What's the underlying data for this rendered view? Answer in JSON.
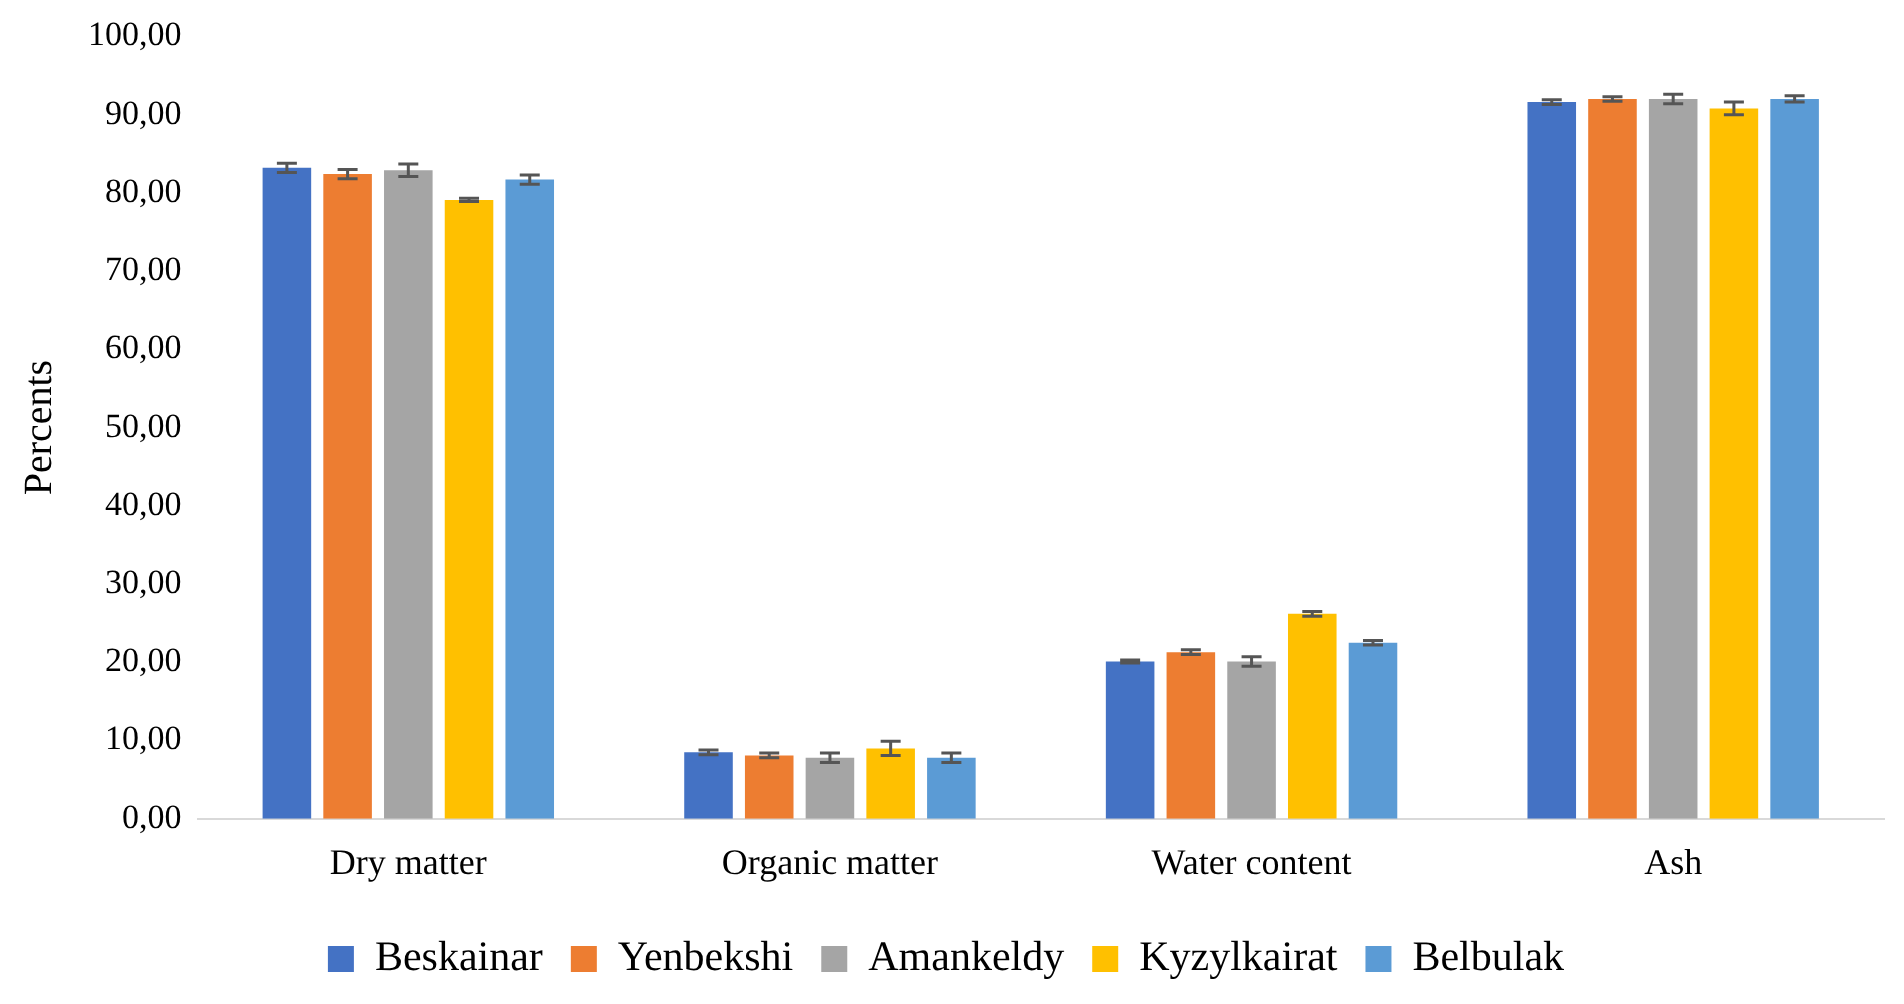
{
  "chart_data": {
    "type": "bar",
    "ylabel": "Percents",
    "categories": [
      "Dry matter",
      "Organic matter",
      "Water content",
      "Ash"
    ],
    "series": [
      {
        "name": "Beskainar",
        "color": "#4472c4",
        "values": [
          83.2,
          8.5,
          20.1,
          91.6
        ],
        "errors": [
          0.6,
          0.3,
          0.2,
          0.3
        ]
      },
      {
        "name": "Yenbekshi",
        "color": "#ed7d31",
        "values": [
          82.4,
          8.1,
          21.3,
          92.0
        ],
        "errors": [
          0.6,
          0.3,
          0.3,
          0.3
        ]
      },
      {
        "name": "Amankeldy",
        "color": "#a5a5a5",
        "values": [
          82.9,
          7.8,
          20.1,
          92.0
        ],
        "errors": [
          0.8,
          0.6,
          0.6,
          0.6
        ]
      },
      {
        "name": "Kyzylkairat",
        "color": "#ffc000",
        "values": [
          79.1,
          9.0,
          26.2,
          90.8
        ],
        "errors": [
          0.2,
          0.9,
          0.3,
          0.8
        ]
      },
      {
        "name": "Belbulak",
        "color": "#5b9bd5",
        "values": [
          81.7,
          7.8,
          22.5,
          92.0
        ],
        "errors": [
          0.6,
          0.6,
          0.3,
          0.4
        ]
      }
    ],
    "ylim": [
      0,
      100
    ],
    "yticks": [
      {
        "value": 0,
        "label": "0,00"
      },
      {
        "value": 10,
        "label": "10,00"
      },
      {
        "value": 20,
        "label": "20,00"
      },
      {
        "value": 30,
        "label": "30,00"
      },
      {
        "value": 40,
        "label": "40,00"
      },
      {
        "value": 50,
        "label": "50,00"
      },
      {
        "value": 60,
        "label": "60,00"
      },
      {
        "value": 70,
        "label": "70,00"
      },
      {
        "value": 80,
        "label": "80,00"
      },
      {
        "value": 90,
        "label": "90,00"
      },
      {
        "value": 100,
        "label": "100,00"
      }
    ],
    "grid": false,
    "legend": "bottom"
  }
}
